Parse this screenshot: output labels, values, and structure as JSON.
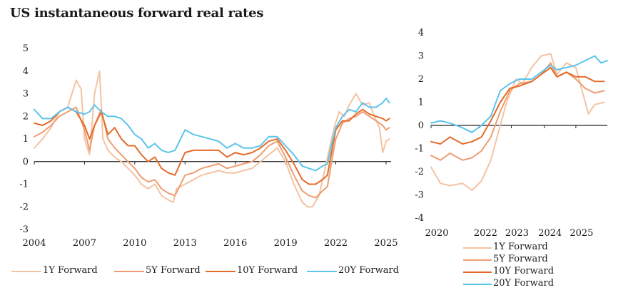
{
  "title": "US instantaneous forward real rates",
  "colors": {
    "f1y": "#f4c3a3",
    "f5y": "#ee9d72",
    "f10y": "#e46c2b",
    "f20y": "#5bc4ea",
    "axis": "#222222"
  },
  "chart_data": [
    {
      "type": "line",
      "title": "US instantaneous forward real rates",
      "xlabel": "",
      "ylabel": "",
      "xlim": [
        2004,
        2025.3
      ],
      "ylim": [
        -3,
        5
      ],
      "x_ticks": [
        "2004",
        "2007",
        "2010",
        "2013",
        "2016",
        "2019",
        "2022",
        "2025"
      ],
      "y_ticks": [
        "5",
        "4",
        "3",
        "2",
        "1",
        "0",
        "-1",
        "-2",
        "-3"
      ],
      "legend": [
        "1Y Forward",
        "5Y Forward",
        "10Y Forward",
        "20Y Forward"
      ],
      "series": [
        {
          "name": "1Y Forward",
          "color_key": "f1y",
          "x": [
            2004,
            2004.5,
            2005,
            2005.5,
            2006,
            2006.5,
            2006.8,
            2007,
            2007.3,
            2007.6,
            2007.9,
            2008.1,
            2008.4,
            2008.8,
            2009.2,
            2009.6,
            2010,
            2010.4,
            2010.8,
            2011.2,
            2011.6,
            2012,
            2012.3,
            2012.5,
            2013,
            2013.5,
            2014,
            2014.5,
            2015,
            2015.5,
            2016,
            2016.5,
            2017,
            2017.5,
            2018,
            2018.5,
            2019,
            2019.5,
            2020,
            2020.3,
            2020.6,
            2021,
            2021.3,
            2021.6,
            2021.9,
            2022.2,
            2022.5,
            2022.8,
            2023.2,
            2023.6,
            2024,
            2024.3,
            2024.6,
            2024.8,
            2025,
            2025.2
          ],
          "values": [
            0.6,
            1.0,
            1.5,
            2.2,
            2.4,
            3.6,
            3.2,
            1.0,
            0.3,
            3.0,
            4.0,
            1.0,
            0.5,
            0.2,
            0.0,
            -0.3,
            -0.6,
            -1.0,
            -1.2,
            -1.0,
            -1.5,
            -1.7,
            -1.8,
            -1.2,
            -1.0,
            -0.8,
            -0.6,
            -0.5,
            -0.4,
            -0.5,
            -0.5,
            -0.4,
            -0.3,
            0.0,
            0.3,
            0.6,
            0.0,
            -1.0,
            -1.8,
            -2.0,
            -2.0,
            -1.5,
            -0.5,
            0.5,
            1.5,
            2.2,
            2.0,
            2.5,
            3.0,
            2.5,
            2.6,
            2.0,
            1.5,
            0.4,
            0.9,
            1.0
          ]
        },
        {
          "name": "5Y Forward",
          "color_key": "f5y",
          "x": [
            2004,
            2004.5,
            2005,
            2005.5,
            2006,
            2006.5,
            2007,
            2007.3,
            2007.6,
            2008,
            2008.4,
            2008.8,
            2009.2,
            2009.6,
            2010,
            2010.4,
            2010.8,
            2011.2,
            2011.6,
            2012,
            2012.4,
            2013,
            2013.5,
            2014,
            2014.5,
            2015,
            2015.5,
            2016,
            2016.5,
            2017,
            2017.5,
            2018,
            2018.5,
            2019,
            2019.5,
            2020,
            2020.4,
            2020.8,
            2021.2,
            2021.5,
            2021.8,
            2022,
            2022.4,
            2022.8,
            2023.2,
            2023.6,
            2024,
            2024.4,
            2024.8,
            2025,
            2025.2
          ],
          "values": [
            1.1,
            1.3,
            1.6,
            2.0,
            2.2,
            2.4,
            1.4,
            0.5,
            1.6,
            2.3,
            1.0,
            0.6,
            0.3,
            0.0,
            -0.3,
            -0.7,
            -0.9,
            -0.8,
            -1.2,
            -1.4,
            -1.5,
            -0.6,
            -0.5,
            -0.3,
            -0.2,
            -0.1,
            -0.3,
            -0.2,
            -0.1,
            0.0,
            0.3,
            0.7,
            0.9,
            0.2,
            -0.6,
            -1.3,
            -1.5,
            -1.6,
            -1.3,
            -1.1,
            0.2,
            1.0,
            1.7,
            1.9,
            2.0,
            2.2,
            2.0,
            1.8,
            1.6,
            1.4,
            1.5
          ]
        },
        {
          "name": "10Y Forward",
          "color_key": "f10y",
          "x": [
            2004,
            2004.5,
            2005,
            2005.5,
            2006,
            2006.5,
            2007,
            2007.3,
            2007.6,
            2008,
            2008.4,
            2008.8,
            2009.2,
            2009.6,
            2010,
            2010.4,
            2010.8,
            2011.2,
            2011.6,
            2012,
            2012.4,
            2013,
            2013.5,
            2014,
            2014.5,
            2015,
            2015.5,
            2016,
            2016.5,
            2017,
            2017.5,
            2018,
            2018.5,
            2019,
            2019.5,
            2020,
            2020.4,
            2020.8,
            2021.2,
            2021.5,
            2021.8,
            2022,
            2022.4,
            2022.8,
            2023.2,
            2023.6,
            2024,
            2024.4,
            2024.8,
            2025,
            2025.2
          ],
          "values": [
            1.7,
            1.6,
            1.8,
            2.2,
            2.4,
            2.2,
            1.6,
            1.0,
            1.6,
            2.2,
            1.2,
            1.5,
            1.0,
            0.7,
            0.7,
            0.3,
            0.0,
            0.2,
            -0.3,
            -0.5,
            -0.6,
            0.4,
            0.5,
            0.5,
            0.5,
            0.5,
            0.2,
            0.4,
            0.3,
            0.4,
            0.6,
            0.9,
            1.0,
            0.5,
            -0.1,
            -0.8,
            -1.0,
            -1.0,
            -0.8,
            -0.6,
            0.6,
            1.4,
            1.8,
            1.8,
            2.1,
            2.3,
            2.1,
            2.0,
            1.9,
            1.8,
            1.9
          ]
        },
        {
          "name": "20Y Forward",
          "color_key": "f20y",
          "x": [
            2004,
            2004.5,
            2005,
            2005.5,
            2006,
            2006.5,
            2007,
            2007.3,
            2007.6,
            2008,
            2008.4,
            2008.8,
            2009.2,
            2009.6,
            2010,
            2010.4,
            2010.8,
            2011.2,
            2011.6,
            2012,
            2012.4,
            2013,
            2013.5,
            2014,
            2014.5,
            2015,
            2015.5,
            2016,
            2016.5,
            2017,
            2017.5,
            2018,
            2018.5,
            2019,
            2019.5,
            2020,
            2020.4,
            2020.8,
            2021.2,
            2021.5,
            2021.8,
            2022,
            2022.4,
            2022.8,
            2023.2,
            2023.6,
            2024,
            2024.4,
            2024.8,
            2025,
            2025.2
          ],
          "values": [
            2.3,
            1.9,
            1.9,
            2.2,
            2.4,
            2.2,
            2.1,
            2.2,
            2.5,
            2.2,
            2.0,
            2.0,
            1.9,
            1.6,
            1.2,
            1.0,
            0.6,
            0.8,
            0.5,
            0.4,
            0.5,
            1.4,
            1.2,
            1.1,
            1.0,
            0.9,
            0.6,
            0.8,
            0.6,
            0.6,
            0.7,
            1.1,
            1.1,
            0.7,
            0.3,
            -0.2,
            -0.3,
            -0.4,
            -0.2,
            -0.1,
            0.9,
            1.5,
            2.0,
            2.3,
            2.2,
            2.6,
            2.4,
            2.4,
            2.6,
            2.8,
            2.6
          ]
        }
      ]
    },
    {
      "type": "line",
      "title": "",
      "xlabel": "",
      "ylabel": "",
      "xlim": [
        2020,
        2025.6
      ],
      "ylim": [
        -4,
        4
      ],
      "x_ticks": [
        "2020",
        "2022",
        "2023",
        "2024",
        "2025"
      ],
      "y_ticks": [
        "4",
        "3",
        "2",
        "1",
        "0",
        "-1",
        "-2",
        "-3",
        "-4"
      ],
      "legend": [
        "1Y Forward",
        "5Y Forward",
        "10Y Forward",
        "20Y Forward"
      ],
      "series": [
        {
          "name": "1Y Forward",
          "color_key": "f1y",
          "x": [
            2020,
            2020.3,
            2020.6,
            2021,
            2021.3,
            2021.6,
            2021.9,
            2022.2,
            2022.4,
            2022.7,
            2022.9,
            2023.2,
            2023.5,
            2023.8,
            2024,
            2024.3,
            2024.6,
            2024.8,
            2025,
            2025.2,
            2025.5
          ],
          "values": [
            -1.8,
            -2.5,
            -2.6,
            -2.5,
            -2.8,
            -2.4,
            -1.5,
            0.0,
            1.0,
            2.0,
            1.8,
            2.5,
            3.0,
            3.1,
            2.2,
            2.7,
            2.5,
            1.5,
            0.5,
            0.9,
            1.0
          ]
        },
        {
          "name": "5Y Forward",
          "color_key": "f5y",
          "x": [
            2020,
            2020.3,
            2020.6,
            2021,
            2021.3,
            2021.6,
            2021.9,
            2022.2,
            2022.5,
            2022.8,
            2023.2,
            2023.5,
            2023.8,
            2024,
            2024.3,
            2024.6,
            2024.9,
            2025.2,
            2025.5
          ],
          "values": [
            -1.3,
            -1.5,
            -1.2,
            -1.5,
            -1.4,
            -1.1,
            -0.5,
            0.6,
            1.5,
            1.8,
            1.9,
            2.2,
            2.7,
            2.1,
            2.3,
            2.0,
            1.6,
            1.4,
            1.5
          ]
        },
        {
          "name": "10Y Forward",
          "color_key": "f10y",
          "x": [
            2020,
            2020.3,
            2020.6,
            2021,
            2021.3,
            2021.6,
            2021.9,
            2022.2,
            2022.5,
            2022.8,
            2023.2,
            2023.5,
            2023.8,
            2024,
            2024.3,
            2024.6,
            2024.9,
            2025.2,
            2025.5
          ],
          "values": [
            -0.7,
            -0.8,
            -0.5,
            -0.8,
            -0.7,
            -0.5,
            0.2,
            1.0,
            1.6,
            1.7,
            1.9,
            2.2,
            2.5,
            2.1,
            2.3,
            2.1,
            2.1,
            1.9,
            1.9
          ]
        },
        {
          "name": "20Y Forward",
          "color_key": "f20y",
          "x": [
            2020,
            2020.3,
            2020.6,
            2021,
            2021.3,
            2021.6,
            2021.9,
            2022.2,
            2022.5,
            2022.8,
            2023.2,
            2023.5,
            2023.8,
            2024,
            2024.3,
            2024.6,
            2024.9,
            2025.2,
            2025.4,
            2025.6
          ],
          "values": [
            0.1,
            0.2,
            0.1,
            -0.1,
            -0.3,
            0.0,
            0.4,
            1.5,
            1.8,
            2.0,
            2.0,
            2.3,
            2.6,
            2.4,
            2.5,
            2.6,
            2.8,
            3.0,
            2.7,
            2.8
          ]
        }
      ]
    }
  ]
}
